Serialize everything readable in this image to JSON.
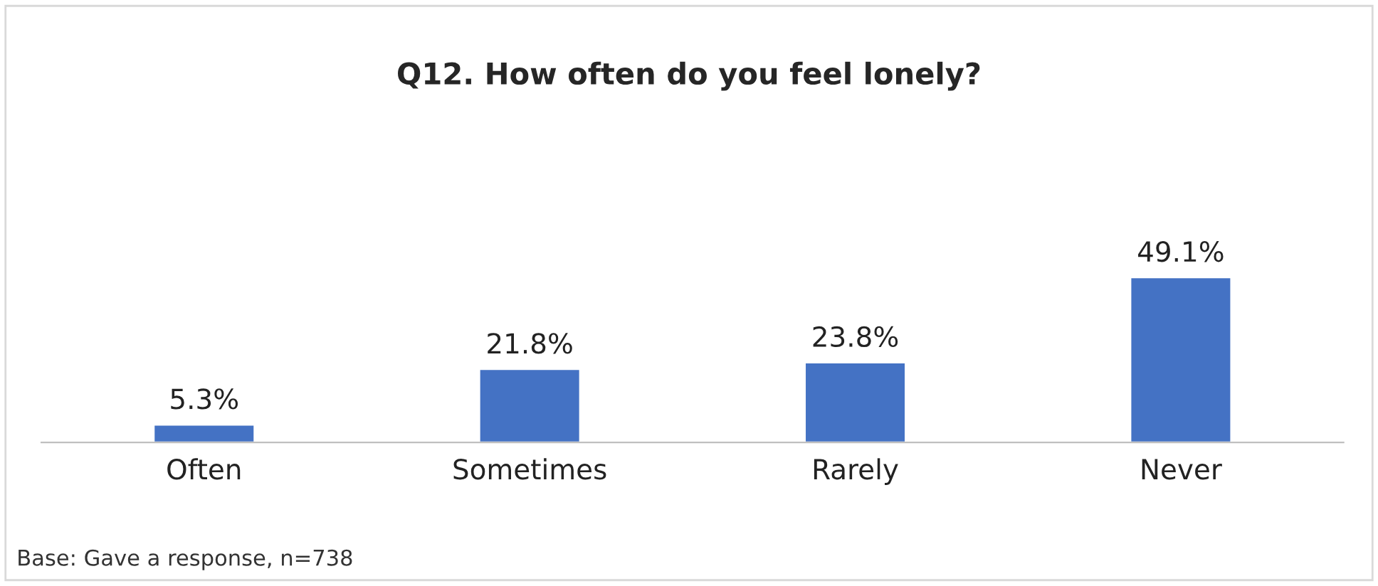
{
  "chart_data": {
    "type": "bar",
    "title": "Q12. How often do you feel lonely?",
    "categories": [
      "Often",
      "Sometimes",
      "Rarely",
      "Never"
    ],
    "values": [
      5.3,
      21.8,
      23.8,
      49.1
    ],
    "value_labels": [
      "5.3%",
      "21.8%",
      "23.8%",
      "49.1%"
    ],
    "color": "#4472c4",
    "annotations": [
      "Base: Gave a response, n=738"
    ],
    "grid": false,
    "legend": false
  }
}
